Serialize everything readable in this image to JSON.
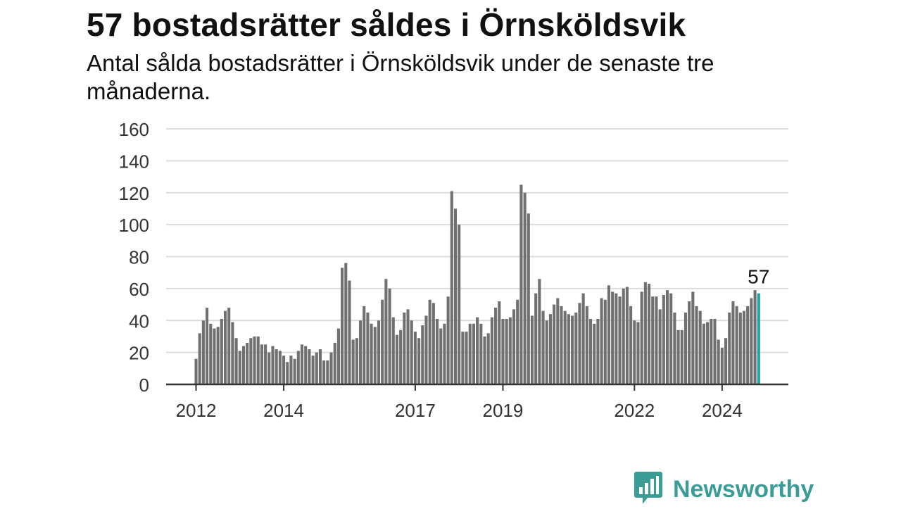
{
  "title": "57 bostadsrätter såldes i Örnsköldsvik",
  "subtitle": "Antal sålda bostadsrätter i Örnsköldsvik under de senaste tre månaderna.",
  "brand": {
    "name": "Newsworthy",
    "icon": "newsworthy-logo-icon"
  },
  "colors": {
    "bar": "#707070",
    "highlight": "#1aa39a",
    "grid": "#dcdcdc",
    "axis": "#333333",
    "brand": "#3b9c96"
  },
  "chart_data": {
    "type": "bar",
    "x_start": "2012-01",
    "frequency": "monthly",
    "ylim": [
      0,
      160
    ],
    "y_ticks": [
      "0",
      "20",
      "40",
      "60",
      "80",
      "100",
      "120",
      "140",
      "160"
    ],
    "x_ticks": [
      {
        "label": "2012",
        "month_index": 0
      },
      {
        "label": "2014",
        "month_index": 24
      },
      {
        "label": "2017",
        "month_index": 60
      },
      {
        "label": "2019",
        "month_index": 84
      },
      {
        "label": "2022",
        "month_index": 120
      },
      {
        "label": "2024",
        "month_index": 144
      }
    ],
    "values": [
      16,
      32,
      40,
      48,
      38,
      35,
      36,
      41,
      46,
      48,
      39,
      29,
      21,
      24,
      26,
      29,
      30,
      30,
      25,
      25,
      20,
      24,
      22,
      21,
      18,
      14,
      18,
      16,
      21,
      25,
      24,
      22,
      18,
      20,
      22,
      15,
      15,
      20,
      26,
      35,
      73,
      76,
      65,
      28,
      29,
      40,
      49,
      45,
      38,
      36,
      40,
      53,
      66,
      60,
      42,
      31,
      34,
      45,
      47,
      40,
      33,
      29,
      37,
      43,
      53,
      51,
      41,
      35,
      38,
      55,
      121,
      110,
      100,
      33,
      33,
      38,
      38,
      42,
      38,
      30,
      32,
      42,
      48,
      52,
      41,
      41,
      42,
      47,
      53,
      125,
      120,
      107,
      43,
      57,
      66,
      46,
      40,
      44,
      50,
      54,
      49,
      46,
      44,
      43,
      45,
      51,
      57,
      49,
      41,
      38,
      41,
      54,
      53,
      62,
      58,
      57,
      55,
      60,
      61,
      49,
      40,
      39,
      58,
      64,
      63,
      55,
      55,
      47,
      56,
      59,
      57,
      45,
      34,
      34,
      45,
      52,
      58,
      49,
      46,
      38,
      39,
      41,
      41,
      28,
      23,
      29,
      45,
      52,
      49,
      45,
      46,
      49,
      54,
      59,
      57
    ],
    "highlight_last": true,
    "last_label": "57"
  }
}
